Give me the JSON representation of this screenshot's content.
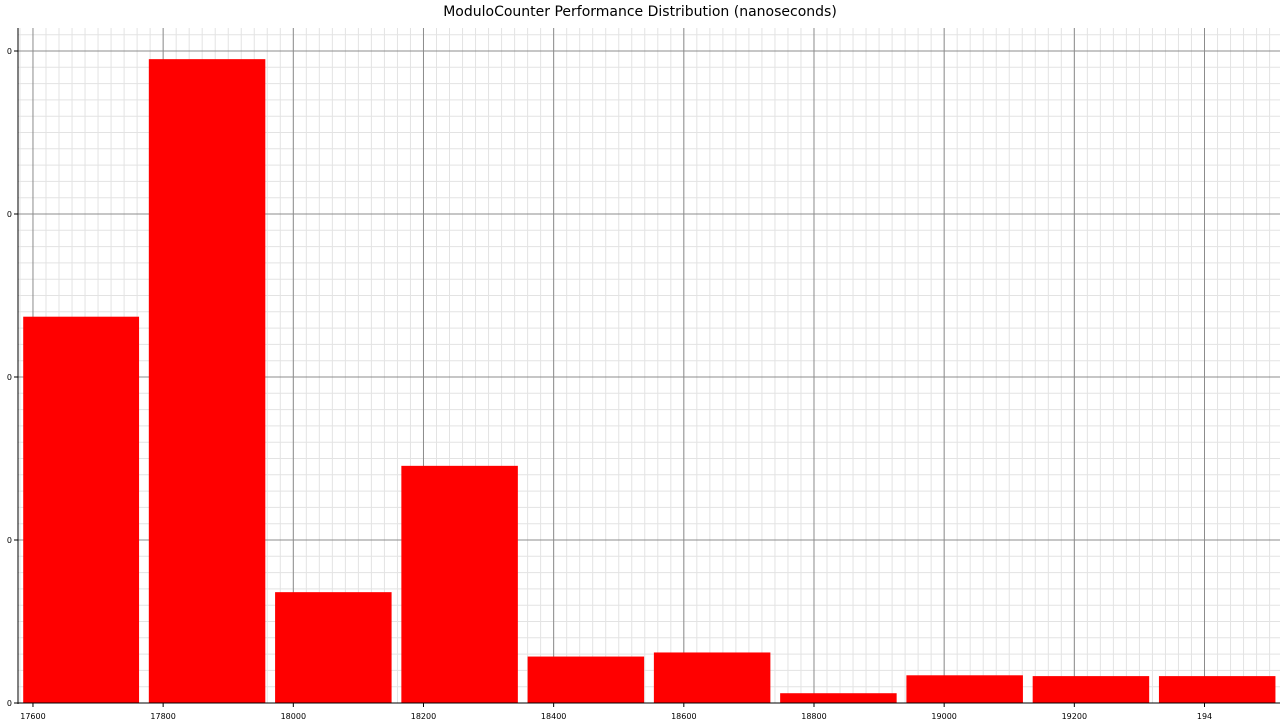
{
  "chart_data": {
    "type": "bar",
    "title": "ModuloCounter  Performance Distribution (nanoseconds)",
    "xlabel": "",
    "ylabel": "",
    "x_ticks": [
      "17600",
      "17800",
      "18000",
      "18200",
      "18400",
      "18600",
      "18800",
      "19000",
      "19200",
      "194"
    ],
    "y_ticks": [
      "0",
      "0",
      "0",
      "0",
      "0"
    ],
    "bins": [
      {
        "start": 17585,
        "end": 17763,
        "value": 23.7
      },
      {
        "start": 17778,
        "end": 17957,
        "value": 39.5
      },
      {
        "start": 17972,
        "end": 18151,
        "value": 6.8
      },
      {
        "start": 18166,
        "end": 18345,
        "value": 14.55
      },
      {
        "start": 18360,
        "end": 18539,
        "value": 2.85
      },
      {
        "start": 18554,
        "end": 18733,
        "value": 3.1
      },
      {
        "start": 18748,
        "end": 18927,
        "value": 0.6
      },
      {
        "start": 18942,
        "end": 19121,
        "value": 1.7
      },
      {
        "start": 19136,
        "end": 19315,
        "value": 1.65
      },
      {
        "start": 19330,
        "end": 19509,
        "value": 1.65
      }
    ],
    "xlim": [
      17577,
      19516
    ],
    "ylim": [
      0,
      40
    ],
    "grid": true,
    "bar_color": "#ff0000"
  }
}
